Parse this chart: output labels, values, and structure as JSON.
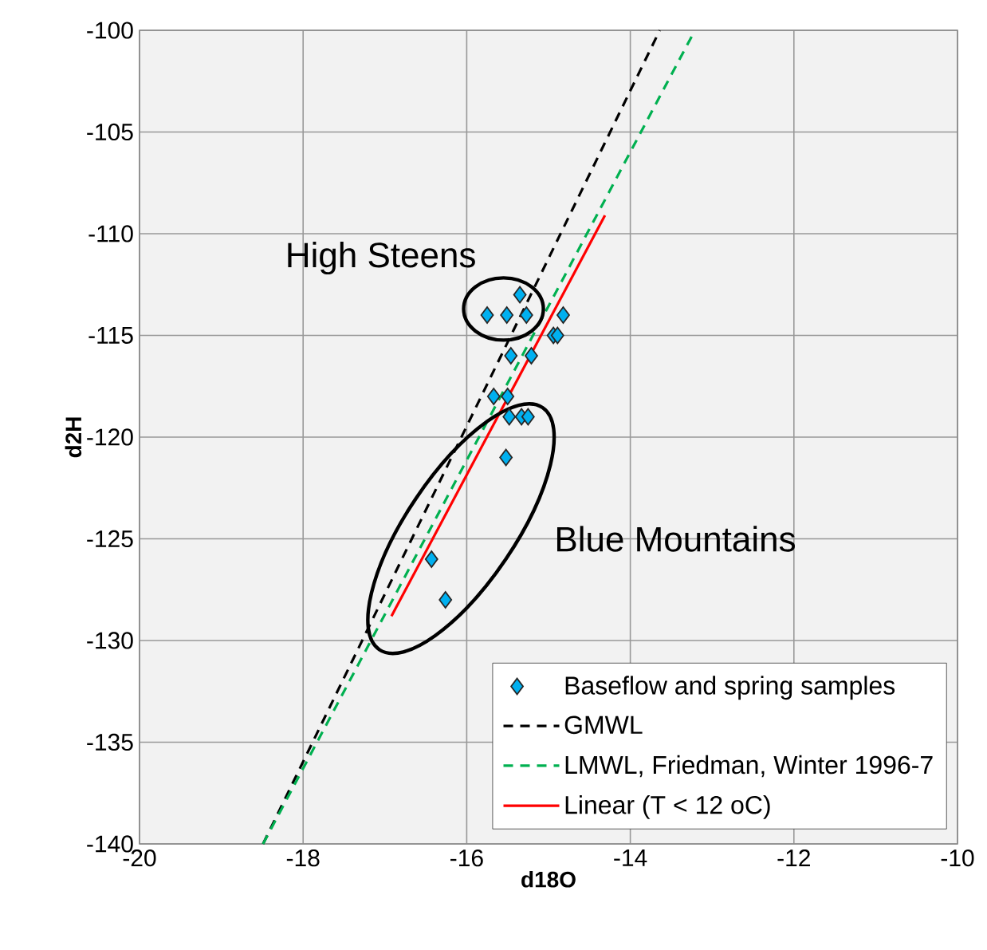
{
  "chart_data": {
    "type": "scatter",
    "xlabel": "d18O",
    "ylabel": "d2H",
    "xlim": [
      -20,
      -10
    ],
    "xticks": [
      -20,
      -18,
      -16,
      -14,
      -12,
      -10
    ],
    "ylim": [
      -140,
      -100
    ],
    "yticks": [
      -140,
      -135,
      -130,
      -125,
      -120,
      -115,
      -110,
      -105,
      -100
    ],
    "grid": true,
    "legend": "bottom right",
    "series": [
      {
        "name": "Baseflow and spring samples",
        "marker": "diamond",
        "color": "#00b0f0",
        "x": [
          -15.75,
          -15.51,
          -15.35,
          -15.27,
          -14.82,
          -14.94,
          -14.89,
          -15.46,
          -15.21,
          -15.67,
          -15.5,
          -15.48,
          -15.33,
          -15.25,
          -15.52,
          -16.43,
          -16.26
        ],
        "values": [
          -114,
          -114,
          -113,
          -114,
          -114,
          -115,
          -115,
          -116,
          -116,
          -118,
          -118,
          -119,
          -119,
          -119,
          -121,
          -126,
          -128
        ]
      },
      {
        "name": "GMWL",
        "type": "line",
        "marker": "none",
        "line_style": "dashed",
        "color": "#000000",
        "x": [
          -18.49,
          -13.64
        ],
        "values": [
          -140,
          -100
        ]
      },
      {
        "name": "LMWL, Friedman, Winter 1996-7",
        "type": "line",
        "marker": "none",
        "line_style": "dashed",
        "color": "#00b050",
        "x": [
          -18.49,
          -13.21
        ],
        "values": [
          -140,
          -100
        ]
      },
      {
        "name": "Linear (T < 12 oC)",
        "type": "line",
        "marker": "none",
        "line_style": "solid",
        "color": "#ff0000",
        "x": [
          -16.92,
          -14.31
        ],
        "values": [
          -128.8,
          -109.1
        ]
      }
    ],
    "annotations": [
      "High Steens",
      "Blue Mountains"
    ]
  }
}
